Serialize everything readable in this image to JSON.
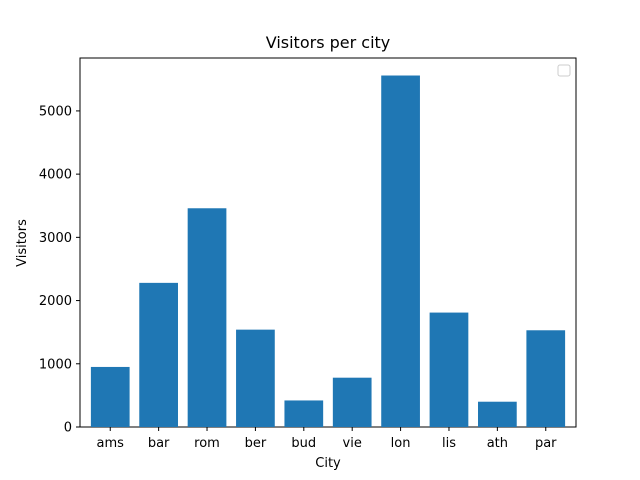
{
  "chart_data": {
    "type": "bar",
    "title": "Visitors per city",
    "xlabel": "City",
    "ylabel": "Visitors",
    "categories": [
      "ams",
      "bar",
      "rom",
      "ber",
      "bud",
      "vie",
      "lon",
      "lis",
      "ath",
      "par"
    ],
    "values": [
      950,
      2280,
      3460,
      1540,
      420,
      780,
      5560,
      1810,
      400,
      1530
    ],
    "ylim": [
      0,
      5837
    ],
    "yticks": [
      0,
      1000,
      2000,
      3000,
      4000,
      5000
    ],
    "grid": false,
    "legend": {
      "placement": "upper-right",
      "entries": []
    },
    "colors": {
      "bar": "#1f77b4",
      "axes": "#000000",
      "background": "#ffffff",
      "legend_border": "#cccccc"
    }
  }
}
